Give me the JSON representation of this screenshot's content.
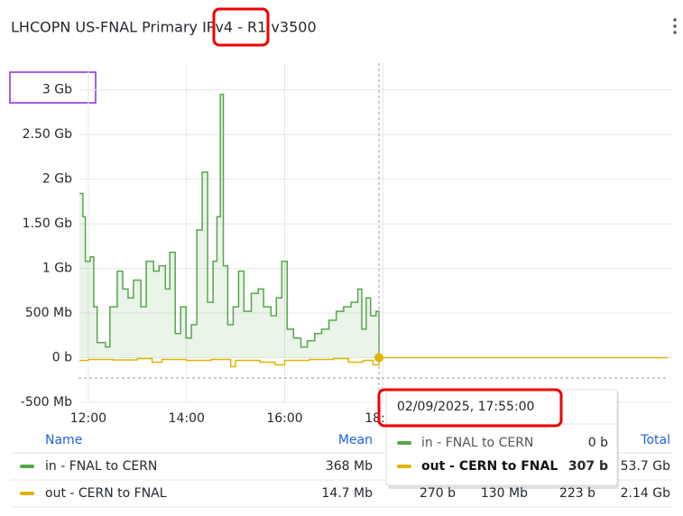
{
  "chart_data": {
    "type": "line",
    "title": "LHCOPN US-FNAL Primary IPv4 - R1 v3500",
    "ylim": [
      -0.5,
      3.3
    ],
    "yticks": [
      {
        "value": -0.5,
        "label": "-500 Mb"
      },
      {
        "value": 0,
        "label": "0 b"
      },
      {
        "value": 0.5,
        "label": "500 Mb"
      },
      {
        "value": 1,
        "label": "1 Gb"
      },
      {
        "value": 1.5,
        "label": "1.50 Gb"
      },
      {
        "value": 2,
        "label": "2 Gb"
      },
      {
        "value": 2.5,
        "label": "2.50 Gb"
      },
      {
        "value": 3,
        "label": "3 Gb"
      }
    ],
    "xlim": [
      11.8,
      23.8
    ],
    "xticks": [
      {
        "value": 12,
        "label": "12:00"
      },
      {
        "value": 14,
        "label": "14:00"
      },
      {
        "value": 16,
        "label": "16:00"
      },
      {
        "value": 18,
        "label": "18:00"
      }
    ],
    "grid": true,
    "series": [
      {
        "name": "in - FNAL to CERN",
        "color": "#56a64b",
        "fill": true,
        "x": [
          11.82,
          11.89,
          11.94,
          12.04,
          12.11,
          12.18,
          12.35,
          12.44,
          12.59,
          12.7,
          12.81,
          12.92,
          13.07,
          13.18,
          13.33,
          13.44,
          13.57,
          13.66,
          13.77,
          13.88,
          13.99,
          14.1,
          14.21,
          14.32,
          14.43,
          14.54,
          14.62,
          14.69,
          14.75,
          14.84,
          14.95,
          15.06,
          15.17,
          15.32,
          15.46,
          15.57,
          15.72,
          15.83,
          15.94,
          16.05,
          16.18,
          16.33,
          16.46,
          16.61,
          16.75,
          16.9,
          17.05,
          17.2,
          17.35,
          17.49,
          17.57,
          17.66,
          17.75,
          17.86,
          17.92
        ],
        "values": [
          1.84,
          1.58,
          1.08,
          1.13,
          0.57,
          0.17,
          0.12,
          0.57,
          0.97,
          0.77,
          0.67,
          0.87,
          0.57,
          1.08,
          0.97,
          1.03,
          0.77,
          1.18,
          0.27,
          0.57,
          0.22,
          0.37,
          1.43,
          2.08,
          0.62,
          1.08,
          1.58,
          2.95,
          1.03,
          0.37,
          0.57,
          0.97,
          0.52,
          0.72,
          0.77,
          0.57,
          0.47,
          0.67,
          1.08,
          0.32,
          0.22,
          0.12,
          0.19,
          0.27,
          0.32,
          0.42,
          0.52,
          0.57,
          0.62,
          0.77,
          0.32,
          0.67,
          0.47,
          0.52,
          0
        ]
      },
      {
        "name": "out - CERN to FNAL",
        "color": "#e0b400",
        "fill": false,
        "x": [
          11.82,
          12.0,
          12.5,
          13.0,
          13.3,
          13.5,
          14.0,
          14.5,
          14.9,
          15.0,
          15.5,
          15.8,
          16.0,
          16.5,
          17.0,
          17.3,
          17.6,
          17.8,
          17.92,
          23.8
        ],
        "values": [
          -0.03,
          -0.02,
          -0.025,
          -0.01,
          -0.05,
          -0.02,
          -0.03,
          -0.02,
          -0.1,
          -0.03,
          -0.05,
          -0.08,
          -0.03,
          -0.02,
          -0.01,
          -0.05,
          -0.03,
          -0.08,
          0,
          0
        ]
      }
    ],
    "legend": {
      "columns": [
        "Name",
        "Mean",
        "Total"
      ],
      "rows": [
        {
          "mean": "368 Mb",
          "total": "53.7 Gb"
        },
        {
          "mean": "14.7 Mb",
          "extra": [
            "270 b",
            "130 Mb",
            "223 b"
          ],
          "total": "2.14 Gb"
        }
      ]
    },
    "tooltip": {
      "time": "02/09/2025, 17:55:00",
      "values": [
        "0 b",
        "307 b"
      ]
    }
  }
}
